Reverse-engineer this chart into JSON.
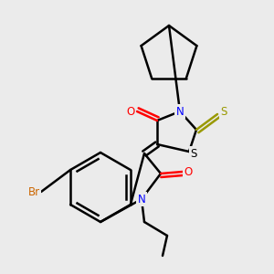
{
  "bg_color": "#ebebeb",
  "atom_colors": {
    "N": "#0000ff",
    "O": "#ff0000",
    "S_thioxo": "#999900",
    "S_ring": "#000000",
    "Br": "#cc6600",
    "C": "#000000"
  },
  "bond_color": "#000000",
  "bond_width": 1.8,
  "font_size": 8.5
}
